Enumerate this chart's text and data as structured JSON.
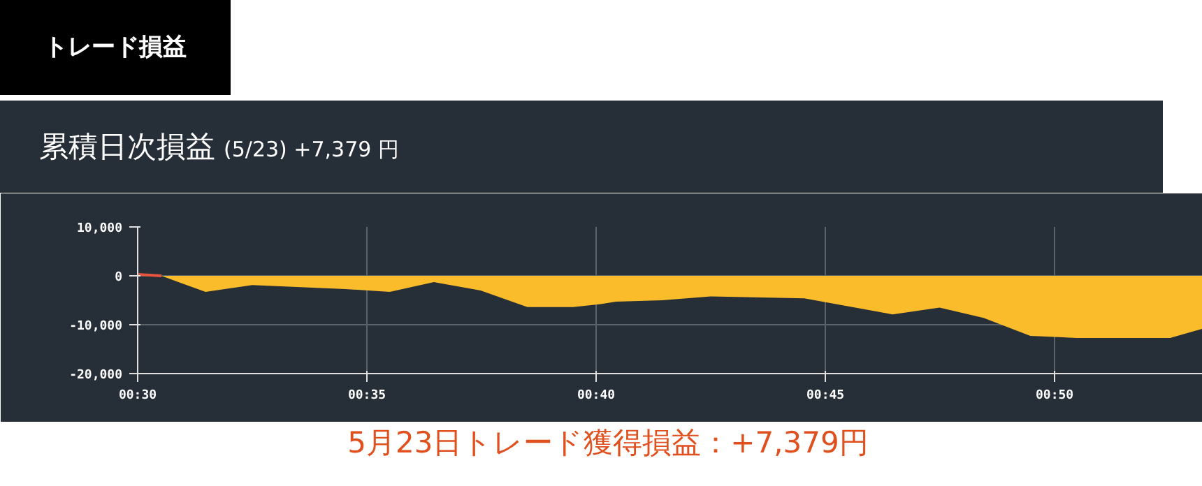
{
  "chart_data": {
    "type": "area",
    "title": "累積日次損益",
    "subtitle": "(5/23) +7,379 円",
    "annotations": [
      "トレード損益",
      "5月23日トレード獲得損益：+7,379円"
    ],
    "xlim": [
      30,
      53.23
    ],
    "ylim": [
      -20000,
      10000
    ],
    "xticks": [
      {
        "value": 30,
        "label": "00:30"
      },
      {
        "value": 35,
        "label": "00:35"
      },
      {
        "value": 40,
        "label": "00:40"
      },
      {
        "value": 45,
        "label": "00:45"
      },
      {
        "value": 50,
        "label": "00:50"
      }
    ],
    "yticks": [
      {
        "value": -20000,
        "label": "-20,000"
      },
      {
        "value": -10000,
        "label": "-10,000"
      },
      {
        "value": 0,
        "label": "0"
      },
      {
        "value": 10000,
        "label": "10,000"
      }
    ],
    "grid": true,
    "series": [
      {
        "color": "#fbbc2b",
        "x": [
          30.52,
          31.48,
          32.5,
          34.53,
          35.5,
          36.46,
          37.48,
          38.5,
          39.5,
          40.1,
          40.43,
          41.44,
          42.5,
          44.54,
          46.47,
          47.49,
          48.45,
          49.47,
          50.49,
          52.52,
          53.23
        ],
        "values": [
          0,
          -3300,
          -1900,
          -2700,
          -3300,
          -1300,
          -3000,
          -6400,
          -6400,
          -5800,
          -5300,
          -5000,
          -4200,
          -4600,
          -7900,
          -6500,
          -8600,
          -12300,
          -12700,
          -12700,
          -10800
        ]
      },
      {
        "type": "line",
        "color": "#e8553e",
        "x": [
          30,
          30.52
        ],
        "values": [
          300,
          0
        ]
      }
    ]
  }
}
